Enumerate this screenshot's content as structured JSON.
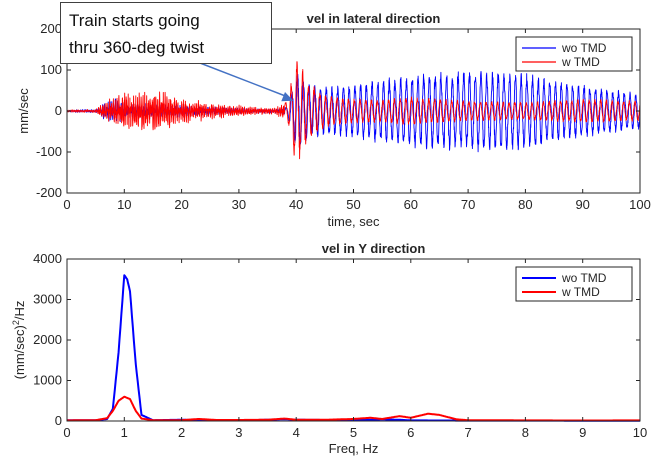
{
  "chart_data": [
    {
      "type": "line",
      "title": "vel in lateral direction",
      "xlabel": "time, sec",
      "ylabel": "mm/sec",
      "xlim": [
        0,
        100
      ],
      "ylim": [
        -200,
        200
      ],
      "xticks": [
        "0",
        "10",
        "20",
        "30",
        "40",
        "50",
        "60",
        "70",
        "80",
        "90",
        "100"
      ],
      "yticks": [
        "200",
        "100",
        "0",
        "-100",
        "-200"
      ],
      "grid": false,
      "legend_position": "top-right",
      "series": [
        {
          "name": "wo TMD",
          "color": "#0000ff",
          "envelope": {
            "t": [
              0,
              5,
              8,
              10,
              15,
              20,
              25,
              30,
              36,
              38.5,
              40,
              42,
              45,
              50,
              55,
              60,
              65,
              70,
              75,
              80,
              85,
              90,
              95,
              100
            ],
            "amp": [
              3,
              5,
              40,
              20,
              22,
              18,
              12,
              8,
              6,
              10,
              100,
              70,
              60,
              65,
              80,
              90,
              95,
              100,
              100,
              95,
              75,
              65,
              55,
              45
            ]
          },
          "dominant_freq_hz": 1.0
        },
        {
          "name": "w TMD",
          "color": "#ff0000",
          "envelope": {
            "t": [
              0,
              5,
              8,
              10,
              12,
              15,
              17,
              20,
              25,
              30,
              36,
              38.5,
              40,
              42,
              45,
              50,
              55,
              60,
              70,
              80,
              90,
              100
            ],
            "amp": [
              3,
              5,
              40,
              55,
              50,
              60,
              50,
              35,
              22,
              15,
              8,
              25,
              140,
              75,
              40,
              30,
              28,
              35,
              25,
              22,
              30,
              25
            ]
          },
          "dominant_freq_hz": 1.0
        }
      ],
      "annotation": {
        "lines": [
          "Train starts going",
          "thru 360-deg twist"
        ],
        "arrow_to": {
          "x": 39.5,
          "y": 25
        }
      }
    },
    {
      "type": "line",
      "title": "vel in Y direction",
      "xlabel": "Freq, Hz",
      "ylabel": "(mm/sec)^2/Hz",
      "xlim": [
        0,
        10
      ],
      "ylim": [
        0,
        4000
      ],
      "xticks": [
        "0",
        "1",
        "2",
        "3",
        "4",
        "5",
        "6",
        "7",
        "8",
        "9",
        "10"
      ],
      "yticks": [
        "4000",
        "3000",
        "2000",
        "1000",
        "0"
      ],
      "grid": false,
      "legend_position": "top-right",
      "series": [
        {
          "name": "wo TMD",
          "color": "#0000ff",
          "x": [
            0,
            0.5,
            0.7,
            0.8,
            0.9,
            1.0,
            1.05,
            1.1,
            1.2,
            1.3,
            1.5,
            2.0,
            2.5,
            3.0,
            3.5,
            3.8,
            4.0,
            5.0,
            5.5,
            5.8,
            6.0,
            7.0,
            8.0,
            9.0,
            10.0
          ],
          "y": [
            20,
            20,
            50,
            300,
            1700,
            3600,
            3500,
            3200,
            1400,
            150,
            20,
            30,
            20,
            15,
            30,
            45,
            30,
            20,
            40,
            30,
            15,
            10,
            10,
            8,
            5
          ]
        },
        {
          "name": "w TMD",
          "color": "#ff0000",
          "x": [
            0,
            0.5,
            0.7,
            0.8,
            0.9,
            1.0,
            1.1,
            1.2,
            1.3,
            1.5,
            2.0,
            2.3,
            2.6,
            3.0,
            3.5,
            3.8,
            4.0,
            4.5,
            5.0,
            5.3,
            5.5,
            5.8,
            6.0,
            6.3,
            6.5,
            6.8,
            7.0,
            8.0,
            9.0,
            10.0
          ],
          "y": [
            15,
            20,
            70,
            250,
            500,
            600,
            540,
            250,
            60,
            20,
            20,
            50,
            25,
            25,
            30,
            60,
            30,
            30,
            50,
            80,
            50,
            120,
            80,
            180,
            150,
            40,
            20,
            15,
            12,
            15
          ]
        }
      ]
    }
  ]
}
